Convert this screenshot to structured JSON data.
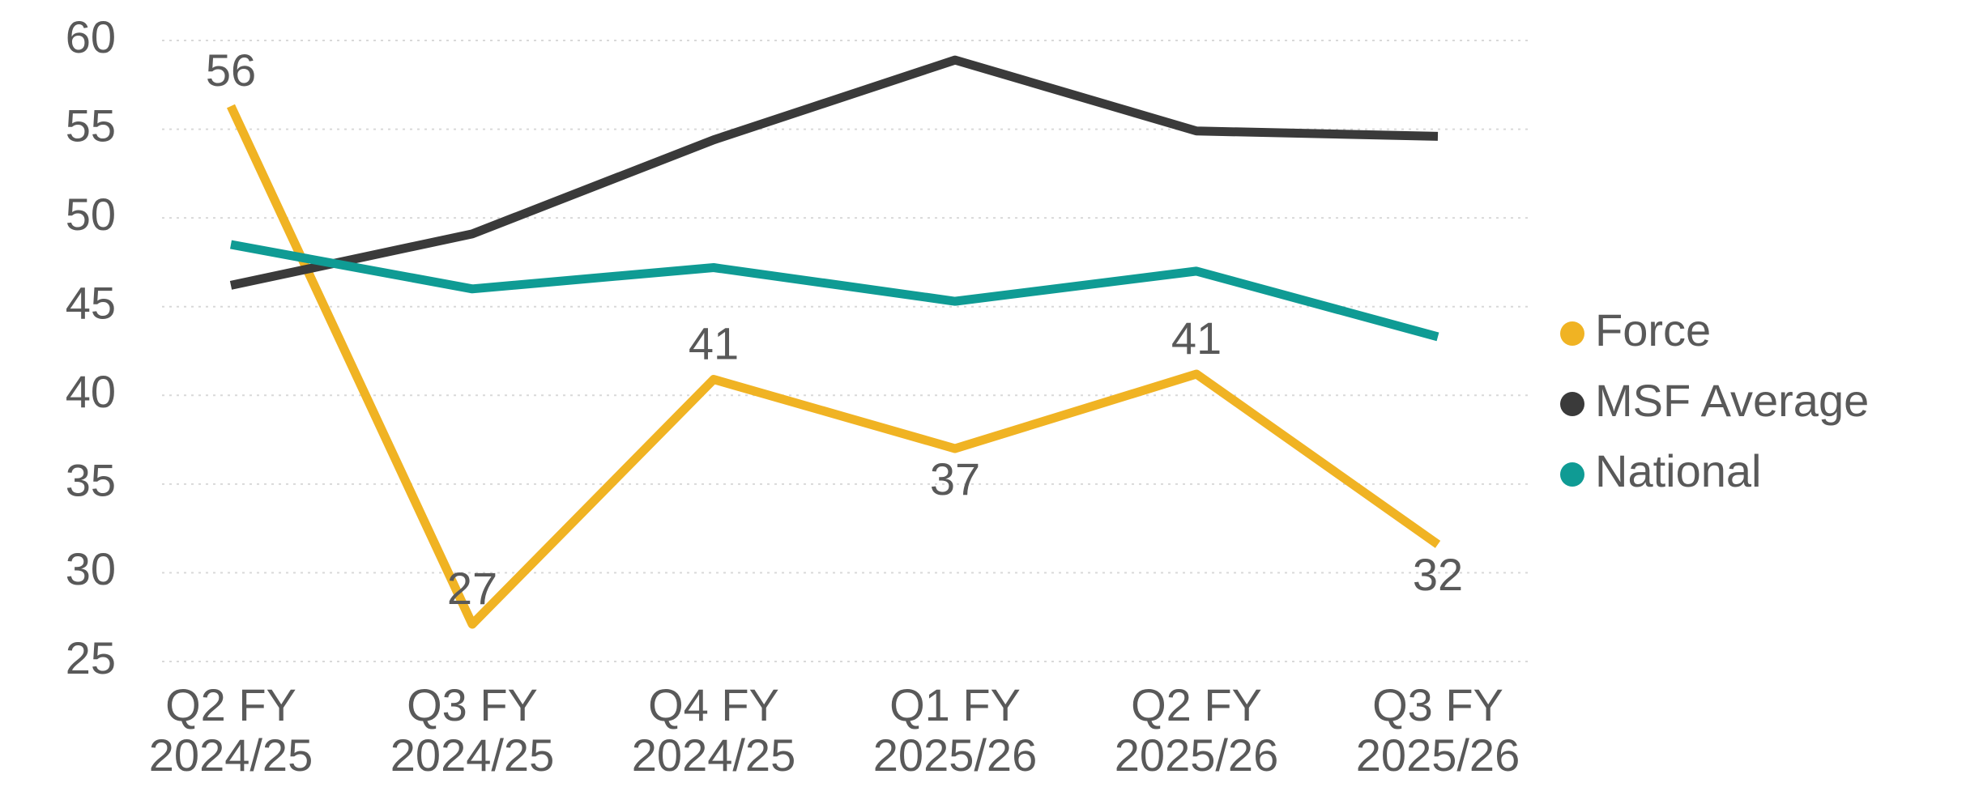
{
  "chart_data": {
    "type": "line",
    "categories": [
      "Q2 FY 2024/25",
      "Q3 FY 2024/25",
      "Q4 FY 2024/25",
      "Q1 FY 2025/26",
      "Q2 FY 2025/26",
      "Q3 FY 2025/26"
    ],
    "series": [
      {
        "name": "Force",
        "color": "#f0b323",
        "values": [
          56.3,
          27.1,
          40.9,
          37.0,
          41.2,
          31.6
        ],
        "value_labels": [
          "56",
          "27",
          "41",
          "37",
          "41",
          "32"
        ]
      },
      {
        "name": "MSF Average",
        "color": "#3a3a3a",
        "values": [
          46.2,
          49.1,
          54.4,
          58.9,
          54.9,
          54.6
        ]
      },
      {
        "name": "National",
        "color": "#0f9b94",
        "values": [
          48.5,
          46.0,
          47.2,
          45.3,
          47.0,
          43.3
        ]
      }
    ],
    "ylim": [
      25,
      60
    ],
    "yticks": [
      25,
      30,
      35,
      40,
      45,
      50,
      55,
      60
    ],
    "grid": true,
    "legend": "right"
  }
}
